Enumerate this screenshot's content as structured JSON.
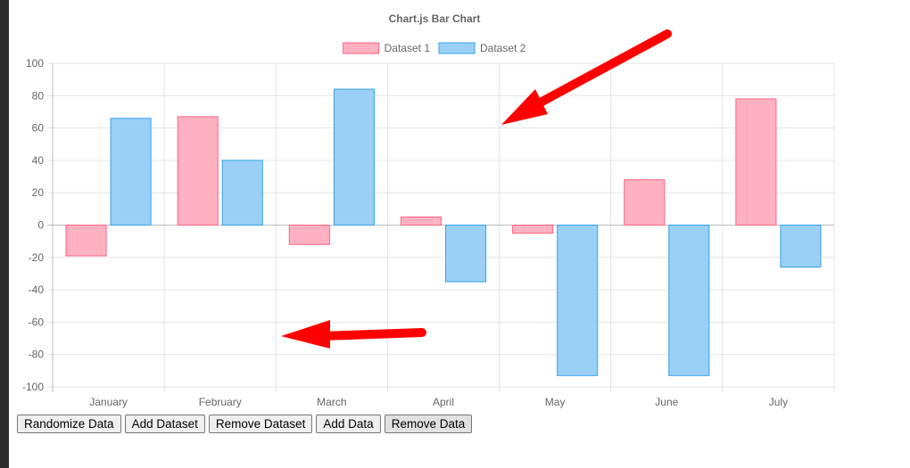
{
  "chart_data": {
    "type": "bar",
    "title": "Chart.js Bar Chart",
    "categories": [
      "January",
      "February",
      "March",
      "April",
      "May",
      "June",
      "July"
    ],
    "series": [
      {
        "name": "Dataset 1",
        "values": [
          -19,
          67,
          -12,
          5,
          -5,
          28,
          78
        ],
        "fill": "#ffb1c1",
        "stroke": "#ff6384"
      },
      {
        "name": "Dataset 2",
        "values": [
          66,
          40,
          84,
          -35,
          -93,
          -93,
          -26
        ],
        "fill": "#9ad0f5",
        "stroke": "#36a2eb"
      }
    ],
    "ylim": [
      -100,
      100
    ],
    "yticks": [
      100,
      80,
      60,
      40,
      20,
      0,
      -20,
      -40,
      -60,
      -80,
      -100
    ],
    "grid": true,
    "legend": "top",
    "annotation_color": "#ff0000"
  },
  "controls": {
    "randomize": "Randomize Data",
    "add_dataset": "Add Dataset",
    "remove_dataset": "Remove Dataset",
    "add_data": "Add Data",
    "remove_data": "Remove Data"
  }
}
